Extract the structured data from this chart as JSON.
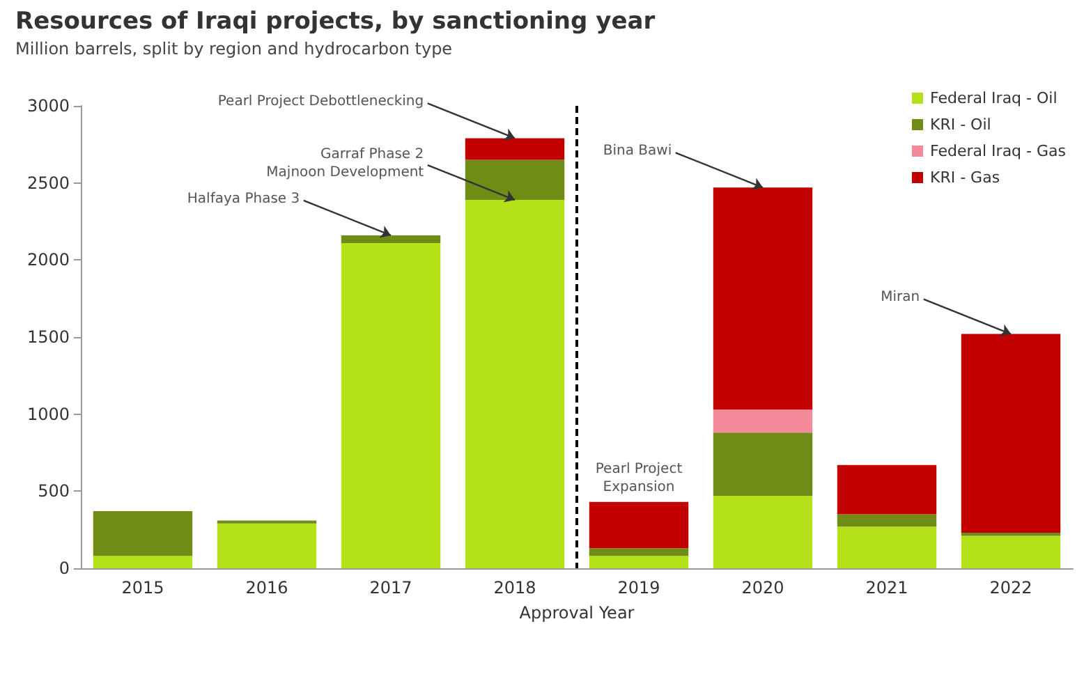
{
  "chart_data": {
    "type": "bar",
    "title": "Resources of Iraqi projects, by sanctioning year",
    "subtitle": "Million barrels, split by region and hydrocarbon type",
    "xlabel": "Approval Year",
    "categories": [
      "2015",
      "2016",
      "2017",
      "2018",
      "2019",
      "2020",
      "2021",
      "2022"
    ],
    "stacked": true,
    "series": [
      {
        "name": "Federal Iraq - Oil",
        "color": "#b5e11b",
        "values": [
          80,
          290,
          2110,
          2390,
          80,
          470,
          270,
          210
        ]
      },
      {
        "name": "KRI - Oil",
        "color": "#6f8d16",
        "values": [
          290,
          20,
          50,
          260,
          50,
          410,
          80,
          20
        ]
      },
      {
        "name": "Federal Iraq - Gas",
        "color": "#f4899a",
        "values": [
          0,
          0,
          0,
          0,
          0,
          150,
          0,
          0
        ]
      },
      {
        "name": "KRI - Gas",
        "color": "#c30000",
        "values": [
          0,
          0,
          0,
          140,
          300,
          1440,
          320,
          1290
        ]
      }
    ],
    "ylim": [
      0,
      3000
    ],
    "yticks": [
      0,
      500,
      1000,
      1500,
      2000,
      2500,
      3000
    ],
    "legend": "top right",
    "annotations": [
      {
        "text": "Halfaya Phase 3",
        "x": "2017",
        "y": 2160
      },
      {
        "text": "Garraf Phase 2\nMajnoon Development",
        "x": "2018",
        "y": 2390
      },
      {
        "text": "Pearl Project Debottlenecking",
        "x": "2018",
        "y": 2790
      },
      {
        "text": "Pearl Project\nExpansion",
        "x": "2019",
        "y": 430
      },
      {
        "text": "Bina Bawi",
        "x": "2020",
        "y": 2470
      },
      {
        "text": "Miran",
        "x": "2022",
        "y": 1520
      }
    ]
  }
}
